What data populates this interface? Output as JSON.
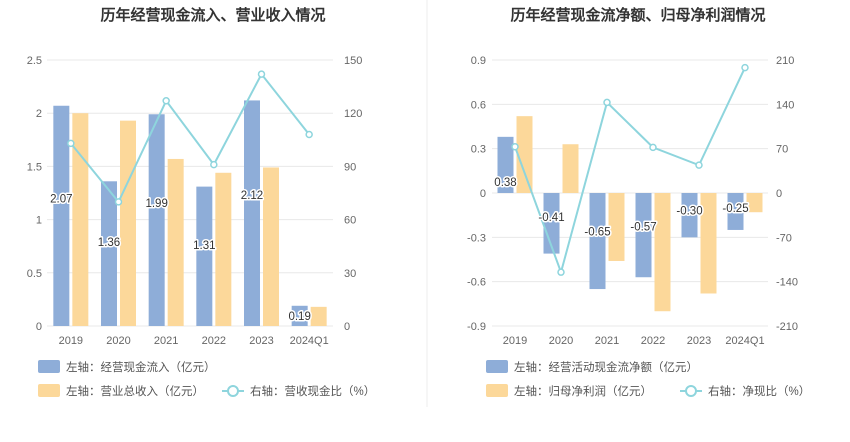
{
  "chart_data": [
    {
      "type": "bar",
      "title": "历年经营现金流入、营业收入情况",
      "categories": [
        "2019",
        "2020",
        "2021",
        "2022",
        "2023",
        "2024Q1"
      ],
      "y_left": {
        "ticks": [
          "0",
          "0.5",
          "1",
          "1.5",
          "2",
          "2.5"
        ],
        "ylim": [
          0,
          2.5
        ]
      },
      "y_right": {
        "ticks": [
          "0",
          "30",
          "60",
          "90",
          "120",
          "150"
        ],
        "ylim": [
          0,
          150
        ]
      },
      "series": [
        {
          "name": "左轴：经营现金流入（亿元）",
          "kind": "bar",
          "axis": "left",
          "color": "#8eadd8",
          "values": [
            2.07,
            1.36,
            1.99,
            1.31,
            2.12,
            0.19
          ],
          "labels": [
            "2.07",
            "1.36",
            "1.99",
            "1.31",
            "2.12",
            "0.19"
          ]
        },
        {
          "name": "左轴：营业总收入（亿元）",
          "kind": "bar",
          "axis": "left",
          "color": "#fcd89a",
          "values": [
            2.0,
            1.93,
            1.57,
            1.44,
            1.49,
            0.18
          ]
        },
        {
          "name": "右轴：营收现金比（%）",
          "kind": "line",
          "axis": "right",
          "color": "#8ed5dd",
          "values": [
            103,
            70,
            127,
            91,
            142,
            108
          ]
        }
      ]
    },
    {
      "type": "bar",
      "title": "历年经营现金流净额、归母净利润情况",
      "categories": [
        "2019",
        "2020",
        "2021",
        "2022",
        "2023",
        "2024Q1"
      ],
      "y_left": {
        "ticks": [
          "-0.9",
          "-0.6",
          "-0.3",
          "0",
          "0.3",
          "0.6",
          "0.9"
        ],
        "ylim": [
          -0.9,
          0.9
        ]
      },
      "y_right": {
        "ticks": [
          "-210",
          "-140",
          "-70",
          "0",
          "70",
          "140",
          "210"
        ],
        "ylim": [
          -210,
          210
        ]
      },
      "series": [
        {
          "name": "左轴：经营活动现金流净额（亿元）",
          "kind": "bar",
          "axis": "left",
          "color": "#8eadd8",
          "values": [
            0.38,
            -0.41,
            -0.65,
            -0.57,
            -0.3,
            -0.25
          ],
          "labels": [
            "0.38",
            "-0.41",
            "-0.65",
            "-0.57",
            "-0.30",
            "-0.25"
          ]
        },
        {
          "name": "左轴：归母净利润（亿元）",
          "kind": "bar",
          "axis": "left",
          "color": "#fcd89a",
          "values": [
            0.52,
            0.33,
            -0.46,
            -0.8,
            -0.68,
            -0.13
          ]
        },
        {
          "name": "右轴：净现比（%）",
          "kind": "line",
          "axis": "right",
          "color": "#8ed5dd",
          "values": [
            73,
            -125,
            143,
            72,
            44,
            198
          ]
        }
      ]
    }
  ]
}
